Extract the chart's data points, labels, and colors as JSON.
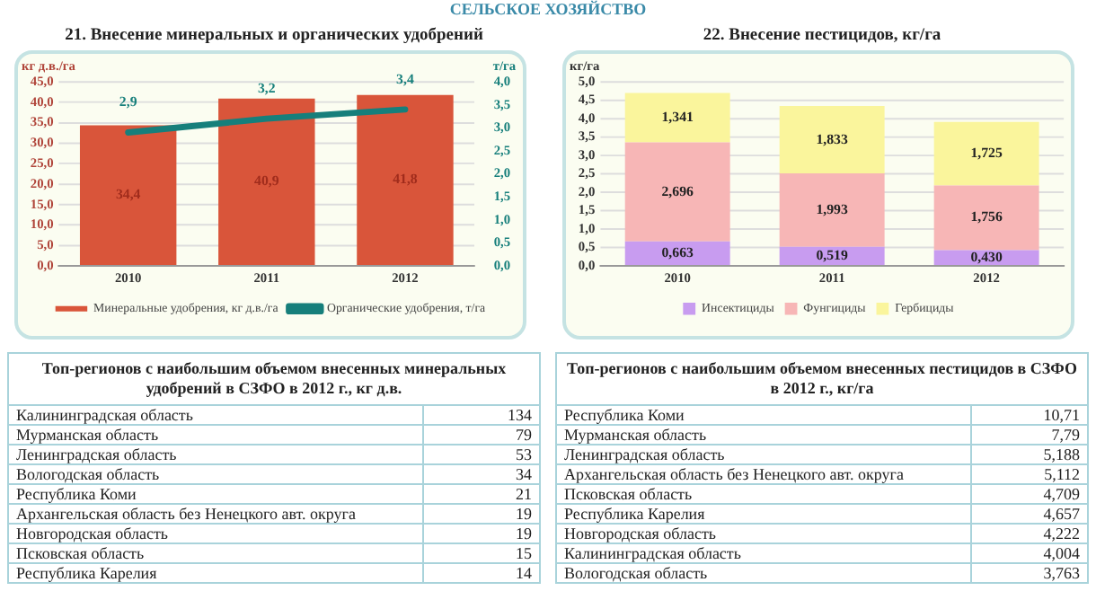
{
  "chart_data": [
    {
      "type": "bar",
      "title": "21. Внесение минеральных и органических удобрений",
      "annotations": [
        "СЕЛЬСКОЕ ХОЗЯЙСТВО"
      ],
      "categories": [
        "2010",
        "2011",
        "2012"
      ],
      "ylabel": "кг д.в./га",
      "y2label": "т/га",
      "series": [
        {
          "name": "Минеральные удобрения, кг д.в./га",
          "color": "#d9553a",
          "values": [
            34.4,
            40.9,
            41.8
          ],
          "value_labels": [
            "34,4",
            "40,9",
            "41,8"
          ]
        },
        {
          "name": "Органические удобрения, т/га",
          "type": "line",
          "axis": "y2",
          "color": "#167f7b",
          "values": [
            2.9,
            3.2,
            3.4
          ],
          "value_labels": [
            "2,9",
            "3,2",
            "3,4"
          ]
        }
      ],
      "ylim": [
        0,
        45
      ],
      "yticks": [
        {
          "value": 0,
          "label": "0,0"
        },
        {
          "value": 5,
          "label": "5,0"
        },
        {
          "value": 10,
          "label": "10,0"
        },
        {
          "value": 15,
          "label": "15,0"
        },
        {
          "value": 20,
          "label": "20,0"
        },
        {
          "value": 25,
          "label": "25,0"
        },
        {
          "value": 30,
          "label": "30,0"
        },
        {
          "value": 35,
          "label": "35,0"
        },
        {
          "value": 40,
          "label": "40,0"
        },
        {
          "value": 45,
          "label": "45,0"
        }
      ],
      "y2lim": [
        0,
        4
      ],
      "y2ticks": [
        {
          "value": 0,
          "label": "0,0"
        },
        {
          "value": 0.5,
          "label": "0,5"
        },
        {
          "value": 1,
          "label": "1,0"
        },
        {
          "value": 1.5,
          "label": "1,5"
        },
        {
          "value": 2,
          "label": "2,0"
        },
        {
          "value": 2.5,
          "label": "2,5"
        },
        {
          "value": 3,
          "label": "3,0"
        },
        {
          "value": 3.5,
          "label": "3,5"
        },
        {
          "value": 4,
          "label": "4,0"
        }
      ],
      "grid": "y",
      "legend": "bottom",
      "marker": "none"
    },
    {
      "type": "bar",
      "title": "22. Внесение пестицидов, кг/га",
      "categories": [
        "2010",
        "2011",
        "2012"
      ],
      "ylabel": "кг/га",
      "stacked": true,
      "series": [
        {
          "name": "Инсектициды",
          "color": "#c89cf0",
          "values": [
            0.663,
            0.519,
            0.43
          ],
          "value_labels": [
            "0,663",
            "0,519",
            "0,430"
          ]
        },
        {
          "name": "Фунгициды",
          "color": "#f7b6b6",
          "values": [
            2.696,
            1.993,
            1.756
          ],
          "value_labels": [
            "2,696",
            "1,993",
            "1,756"
          ]
        },
        {
          "name": "Гербициды",
          "color": "#faf59c",
          "values": [
            1.341,
            1.833,
            1.725
          ],
          "value_labels": [
            "1,341",
            "1,833",
            "1,725"
          ]
        }
      ],
      "ylim": [
        0,
        5
      ],
      "yticks": [
        {
          "value": 0,
          "label": "0,0"
        },
        {
          "value": 0.5,
          "label": "0,5"
        },
        {
          "value": 1,
          "label": "1,0"
        },
        {
          "value": 1.5,
          "label": "1,5"
        },
        {
          "value": 2,
          "label": "2,0"
        },
        {
          "value": 2.5,
          "label": "2,5"
        },
        {
          "value": 3,
          "label": "3,0"
        },
        {
          "value": 3.5,
          "label": "3,5"
        },
        {
          "value": 4,
          "label": "4,0"
        },
        {
          "value": 4.5,
          "label": "4,5"
        },
        {
          "value": 5,
          "label": "5,0"
        }
      ],
      "grid": "y",
      "legend": "bottom"
    },
    {
      "type": "other",
      "title": "Топ-регионов с наибольшим объемом внесенных минеральных удобрений в СЗФО в 2012 г., кг д.в.",
      "categories": [
        "Калининградская область",
        "Мурманская область",
        "Ленинградская область",
        "Вологодская область",
        "Республика Коми",
        "Архангельская область без Ненецкого авт. округа",
        "Новгородская область",
        "Псковская область",
        "Республика Карелия"
      ],
      "values": [
        134,
        79,
        53,
        34,
        21,
        19,
        19,
        15,
        14
      ],
      "data_labels": true
    },
    {
      "type": "other",
      "title": "Топ-регионов с наибольшим объемом внесенных пестицидов в СЗФО в 2012 г., кг/га",
      "categories": [
        "Республика Коми",
        "Мурманская область",
        "Ленинградская область",
        "Архангельская область без Ненецкого авт. округа",
        "Псковская область",
        "Республика Карелия",
        "Новгородская область",
        "Калининградская область",
        "Вологодская область"
      ],
      "value_labels": [
        "10,71",
        "7,79",
        "5,188",
        "5,112",
        "4,709",
        "4,657",
        "4,222",
        "4,004",
        "3,763"
      ]
    }
  ]
}
